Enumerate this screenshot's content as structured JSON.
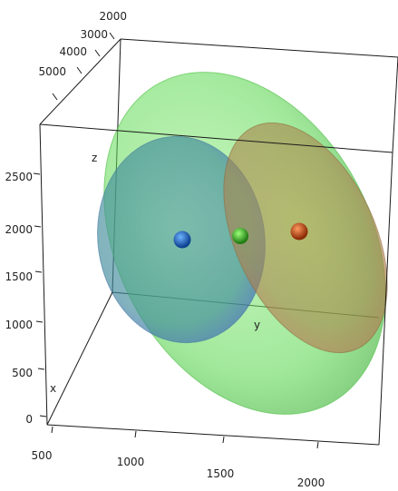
{
  "chart_data": {
    "type": "scatter",
    "title": "",
    "projection": "3d",
    "axes": {
      "x": {
        "label": "x",
        "range": [
          500,
          2000
        ],
        "ticks": [
          "500",
          "1000",
          "1500",
          "2000"
        ]
      },
      "y": {
        "label": "y",
        "range": [
          2000,
          5000
        ],
        "ticks": [
          "2000",
          "3000",
          "4000",
          "5000"
        ]
      },
      "z": {
        "label": "z",
        "range": [
          0,
          2500
        ],
        "ticks": [
          "0",
          "500",
          "1000",
          "1500",
          "2000",
          "2500"
        ]
      }
    },
    "grid": false,
    "series": [
      {
        "color": "#1a5fb4",
        "ellipsoid_color": "#4a5cff",
        "center": {
          "x": 1000,
          "y": 3500,
          "z": 1750
        }
      },
      {
        "color": "#3cb521",
        "ellipsoid_color": "#5fe05f",
        "center": {
          "x": 1350,
          "y": 3500,
          "z": 1800
        }
      },
      {
        "color": "#c8501a",
        "ellipsoid_color": "#e05a3a",
        "center": {
          "x": 1700,
          "y": 3500,
          "z": 1850
        }
      }
    ]
  }
}
